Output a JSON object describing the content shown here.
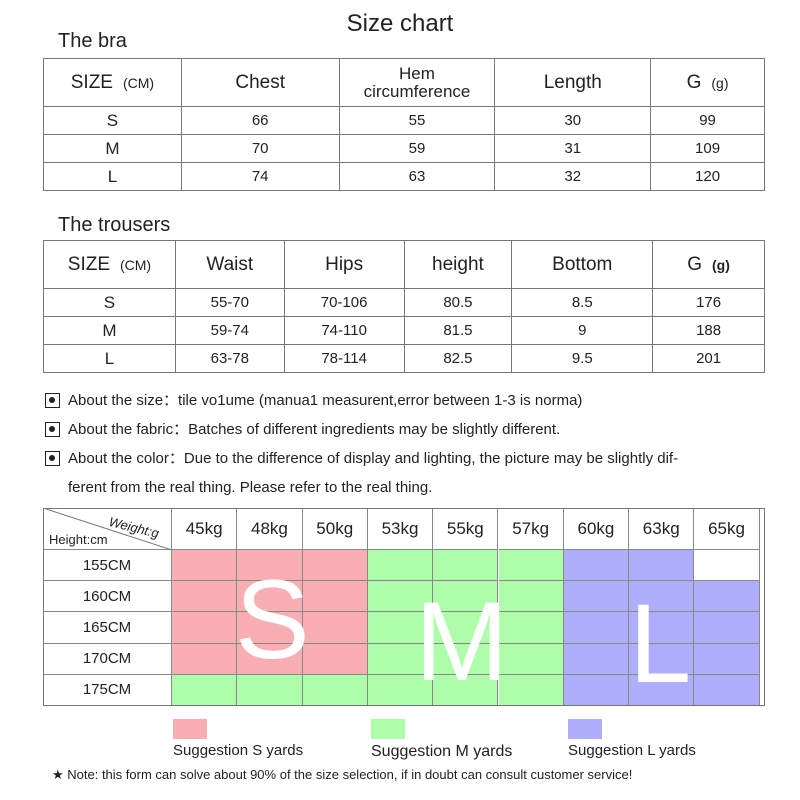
{
  "title": "Size chart",
  "bra": {
    "label": "The bra",
    "header": {
      "size": "SIZE",
      "unit": "(CM)",
      "chest": "Chest",
      "hem": "Hem",
      "circumference": "circumference",
      "length": "Length",
      "weight": "G",
      "weight_unit": "(g)"
    },
    "rows": [
      [
        "S",
        "66",
        "55",
        "30",
        "99"
      ],
      [
        "M",
        "70",
        "59",
        "31",
        "109"
      ],
      [
        "L",
        "74",
        "63",
        "32",
        "120"
      ]
    ]
  },
  "trousers": {
    "label": "The trousers",
    "header": {
      "size": "SIZE",
      "unit": "(CM)",
      "waist": "Waist",
      "hips": "Hips",
      "height": "height",
      "bottom": "Bottom",
      "weight": "G",
      "weight_unit": "(g)"
    },
    "rows": [
      [
        "S",
        "55-70",
        "70-106",
        "80.5",
        "8.5",
        "176"
      ],
      [
        "M",
        "59-74",
        "74-110",
        "81.5",
        "9",
        "188"
      ],
      [
        "L",
        "63-78",
        "78-114",
        "82.5",
        "9.5",
        "201"
      ]
    ]
  },
  "notes": [
    {
      "text": "About the size：tile vo1ume (manua1 measurent,error between 1-3 is norma)",
      "cont": ""
    },
    {
      "text": "About the fabric：Batches of different ingredients may be slightly different.",
      "cont": ""
    },
    {
      "text": "About the color：Due to the difference of display and lighting, the picture may be slightly dif-",
      "cont": "ferent from the real thing. Please refer to the real thing."
    }
  ],
  "grid": {
    "weight_label": "Weight:g",
    "height_label": "Height:cm",
    "weights": [
      "45kg",
      "48kg",
      "50kg",
      "53kg",
      "55kg",
      "57kg",
      "60kg",
      "63kg",
      "65kg"
    ],
    "heights": [
      "155CM",
      "160CM",
      "165CM",
      "170CM",
      "175CM"
    ],
    "cells": [
      [
        "S",
        "S",
        "S",
        "M",
        "M",
        "M",
        "L",
        "L",
        ""
      ],
      [
        "S",
        "S",
        "S",
        "M",
        "M",
        "M",
        "L",
        "L",
        "L"
      ],
      [
        "S",
        "S",
        "S",
        "M",
        "M",
        "M",
        "L",
        "L",
        "L"
      ],
      [
        "S",
        "S",
        "S",
        "M",
        "M",
        "M",
        "L",
        "L",
        "L"
      ],
      [
        "M",
        "M",
        "M",
        "M",
        "M",
        "M",
        "L",
        "L",
        "L"
      ]
    ],
    "big_letters": [
      "S",
      "M",
      "L"
    ]
  },
  "colors": {
    "S": "#f9aeb4",
    "M": "#aefdaa",
    "L": "#afaefc"
  },
  "legend": [
    {
      "key": "S",
      "label": "Suggestion S yards"
    },
    {
      "key": "M",
      "label": "Suggestion M yards"
    },
    {
      "key": "L",
      "label": "Suggestion L yards"
    }
  ],
  "footer": "★ Note: this form can solve about 90% of the size selection, if in doubt can consult customer service!"
}
